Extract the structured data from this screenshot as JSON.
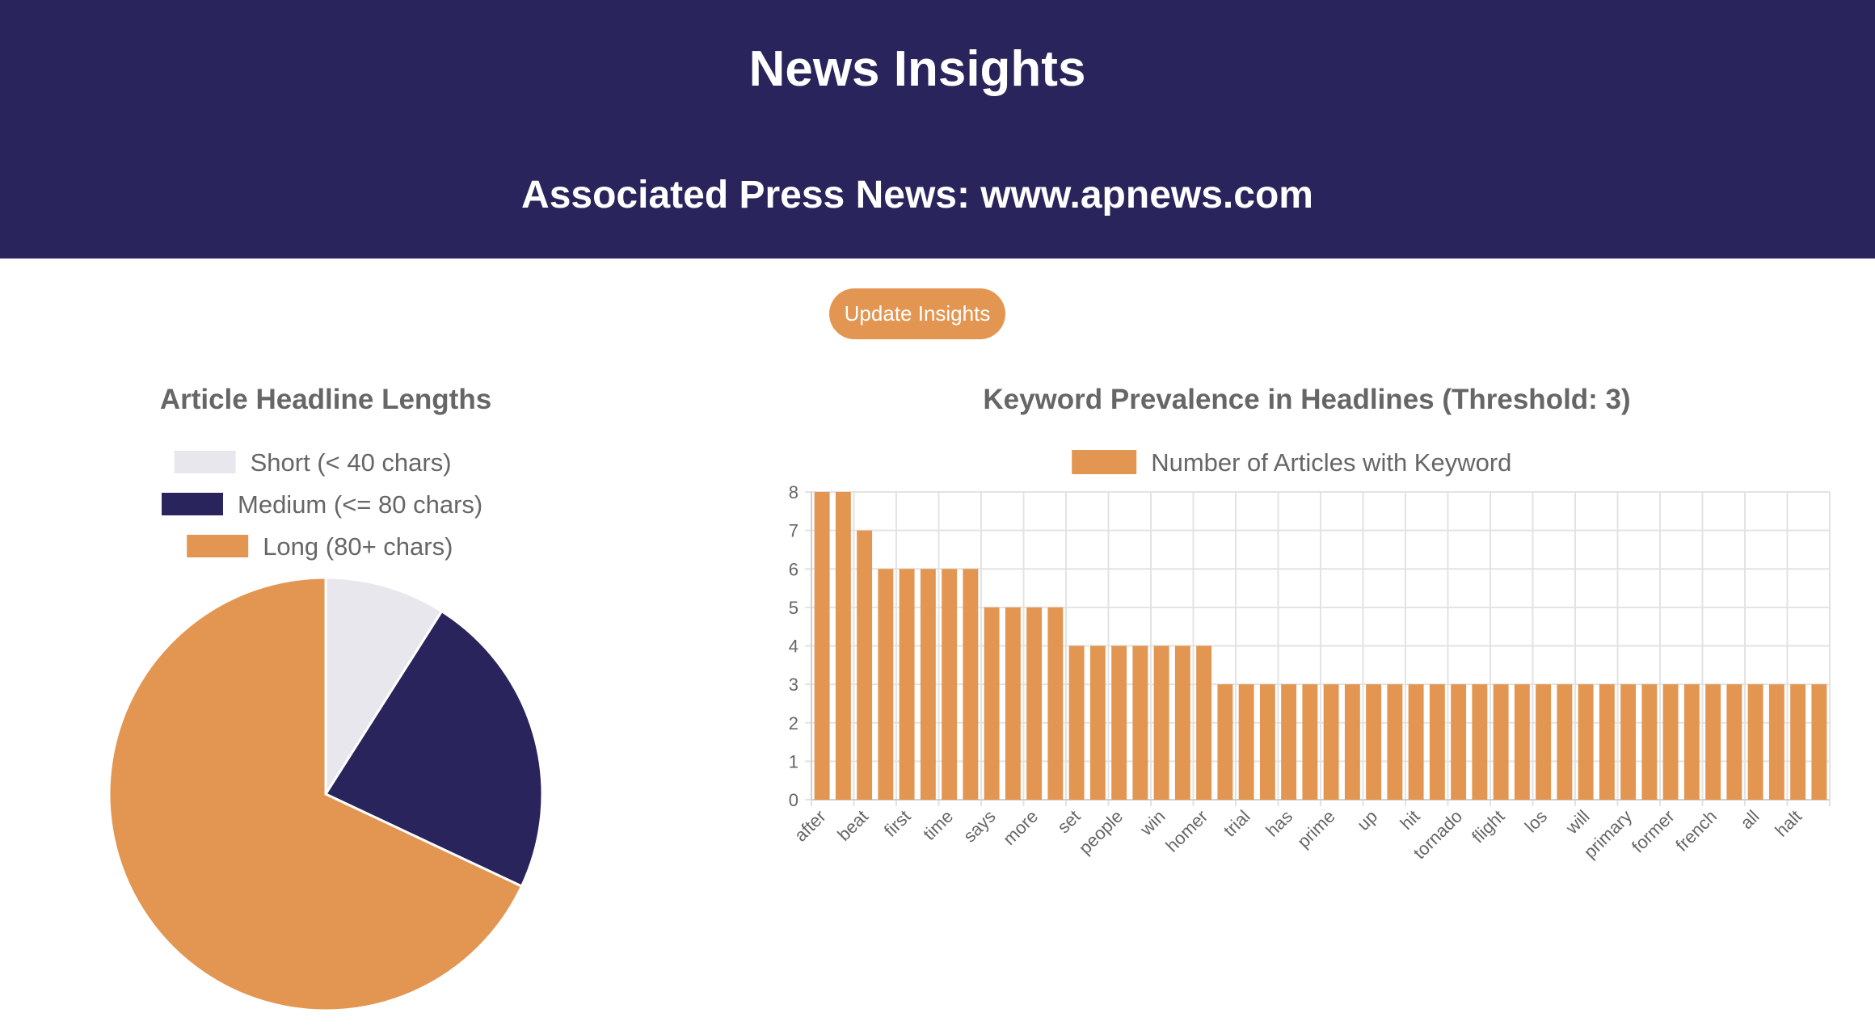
{
  "header": {
    "title": "News Insights",
    "source": "Associated Press News: www.apnews.com"
  },
  "actions": {
    "update_label": "Update Insights"
  },
  "colors": {
    "header_bg": "#29245b",
    "accent": "#e39651",
    "short": "#e8e7ee",
    "medium": "#29245b",
    "long": "#e39651",
    "text_muted": "#666666"
  },
  "chart_data": [
    {
      "type": "pie",
      "title": "Article Headline Lengths",
      "labels": [
        "Short (< 40 chars)",
        "Medium (<= 80 chars)",
        "Long (80+ chars)"
      ],
      "values": [
        9,
        23,
        68
      ],
      "colors": [
        "#e8e7ee",
        "#29245b",
        "#e39651"
      ],
      "legend": "top"
    },
    {
      "type": "bar",
      "title": "Keyword Prevalence in Headlines (Threshold: 3)",
      "series": [
        {
          "name": "Number of Articles with Keyword",
          "values": [
            8,
            8,
            7,
            6,
            6,
            6,
            6,
            6,
            5,
            5,
            5,
            5,
            4,
            4,
            4,
            4,
            4,
            4,
            4,
            3,
            3,
            3,
            3,
            3,
            3,
            3,
            3,
            3,
            3,
            3,
            3,
            3,
            3,
            3,
            3,
            3,
            3,
            3,
            3,
            3,
            3,
            3,
            3,
            3,
            3,
            3,
            3,
            3
          ]
        }
      ],
      "categories": [
        "after",
        "",
        "beat",
        "",
        "first",
        "",
        "time",
        "",
        "says",
        "",
        "more",
        "",
        "set",
        "",
        "people",
        "",
        "win",
        "",
        "homer",
        "",
        "trial",
        "",
        "has",
        "",
        "prime",
        "",
        "up",
        "",
        "hit",
        "",
        "tornado",
        "",
        "flight",
        "",
        "los",
        "",
        "will",
        "",
        "primary",
        "",
        "former",
        "",
        "french",
        "",
        "all",
        "",
        "halt",
        ""
      ],
      "ylim": [
        0,
        8
      ],
      "yticks": [
        0,
        1,
        2,
        3,
        4,
        5,
        6,
        7,
        8
      ],
      "grid": true,
      "legend": "top"
    }
  ]
}
